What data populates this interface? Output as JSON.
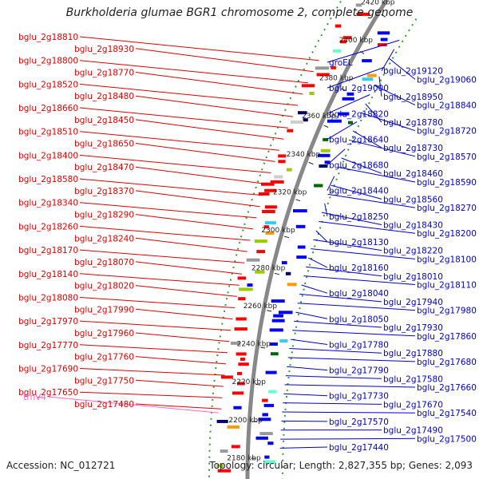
{
  "title": "Burkholderia glumae BGR1 chromosome 2, complete genome",
  "accession_text": "Accession: NC_012721",
  "summary_text": "Topology: circular; Length: 2,827,355 bp; Genes: 2,093",
  "colors": {
    "forward_label": "#dd0000",
    "reverse_label": "#0000cc",
    "trna_label": "#ff66cc",
    "ruler": "#222222",
    "backbone": "#888888",
    "dotted_ring": "#339933"
  },
  "ruler_ticks": [
    "2420 kbp",
    "2400 kbp",
    "2380 kbp",
    "2360 kbp",
    "2340 kbp",
    "2320 kbp",
    "2300 kbp",
    "2280 kbp",
    "2260 kbp",
    "2240 kbp",
    "2220 kbp",
    "2200 kbp",
    "2180 kbp"
  ],
  "left_labels": [
    "bglu_2g18810",
    "bglu_2g18930",
    "bglu_2g18800",
    "bglu_2g18770",
    "bglu_2g18520",
    "bglu_2g18480",
    "bglu_2g18660",
    "bglu_2g18450",
    "bglu_2g18510",
    "bglu_2g18650",
    "bglu_2g18400",
    "bglu_2g18470",
    "bglu_2g18580",
    "bglu_2g18370",
    "bglu_2g18340",
    "bglu_2g18290",
    "bglu_2g18260",
    "bglu_2g18240",
    "bglu_2g18170",
    "bglu_2g18070",
    "bglu_2g18140",
    "bglu_2g18020",
    "bglu_2g18080",
    "bglu_2g17990",
    "bglu_2g17970",
    "bglu_2g17960",
    "bglu_2g17770",
    "bglu_2g17760",
    "bglu_2g17690",
    "bglu_2g17750",
    "bglu_2g17650",
    "bglu_2g17480"
  ],
  "trna_label": "trnV4",
  "right_labels": [
    "groEL",
    "bglu_2g19120",
    "bglu_2g19060",
    "bglu_2g19000",
    "bglu_2g18950",
    "bglu_2g18840",
    "bglu_2g18820",
    "bglu_2g18780",
    "bglu_2g18720",
    "bglu_2g18640",
    "bglu_2g18730",
    "bglu_2g18570",
    "bglu_2g18680",
    "bglu_2g18460",
    "bglu_2g18590",
    "bglu_2g18440",
    "bglu_2g18560",
    "bglu_2g18270",
    "bglu_2g18250",
    "bglu_2g18430",
    "bglu_2g18200",
    "bglu_2g18130",
    "bglu_2g18220",
    "bglu_2g18100",
    "bglu_2g18160",
    "bglu_2g18010",
    "bglu_2g18110",
    "bglu_2g18040",
    "bglu_2g17940",
    "bglu_2g17980",
    "bglu_2g18050",
    "bglu_2g17930",
    "bglu_2g17860",
    "bglu_2g17780",
    "bglu_2g17880",
    "bglu_2g17680",
    "bglu_2g17790",
    "bglu_2g17580",
    "bglu_2g17660",
    "bglu_2g17730",
    "bglu_2g17670",
    "bglu_2g17540",
    "bglu_2g17570",
    "bglu_2g17490",
    "bglu_2g17500",
    "bglu_2g17440"
  ]
}
